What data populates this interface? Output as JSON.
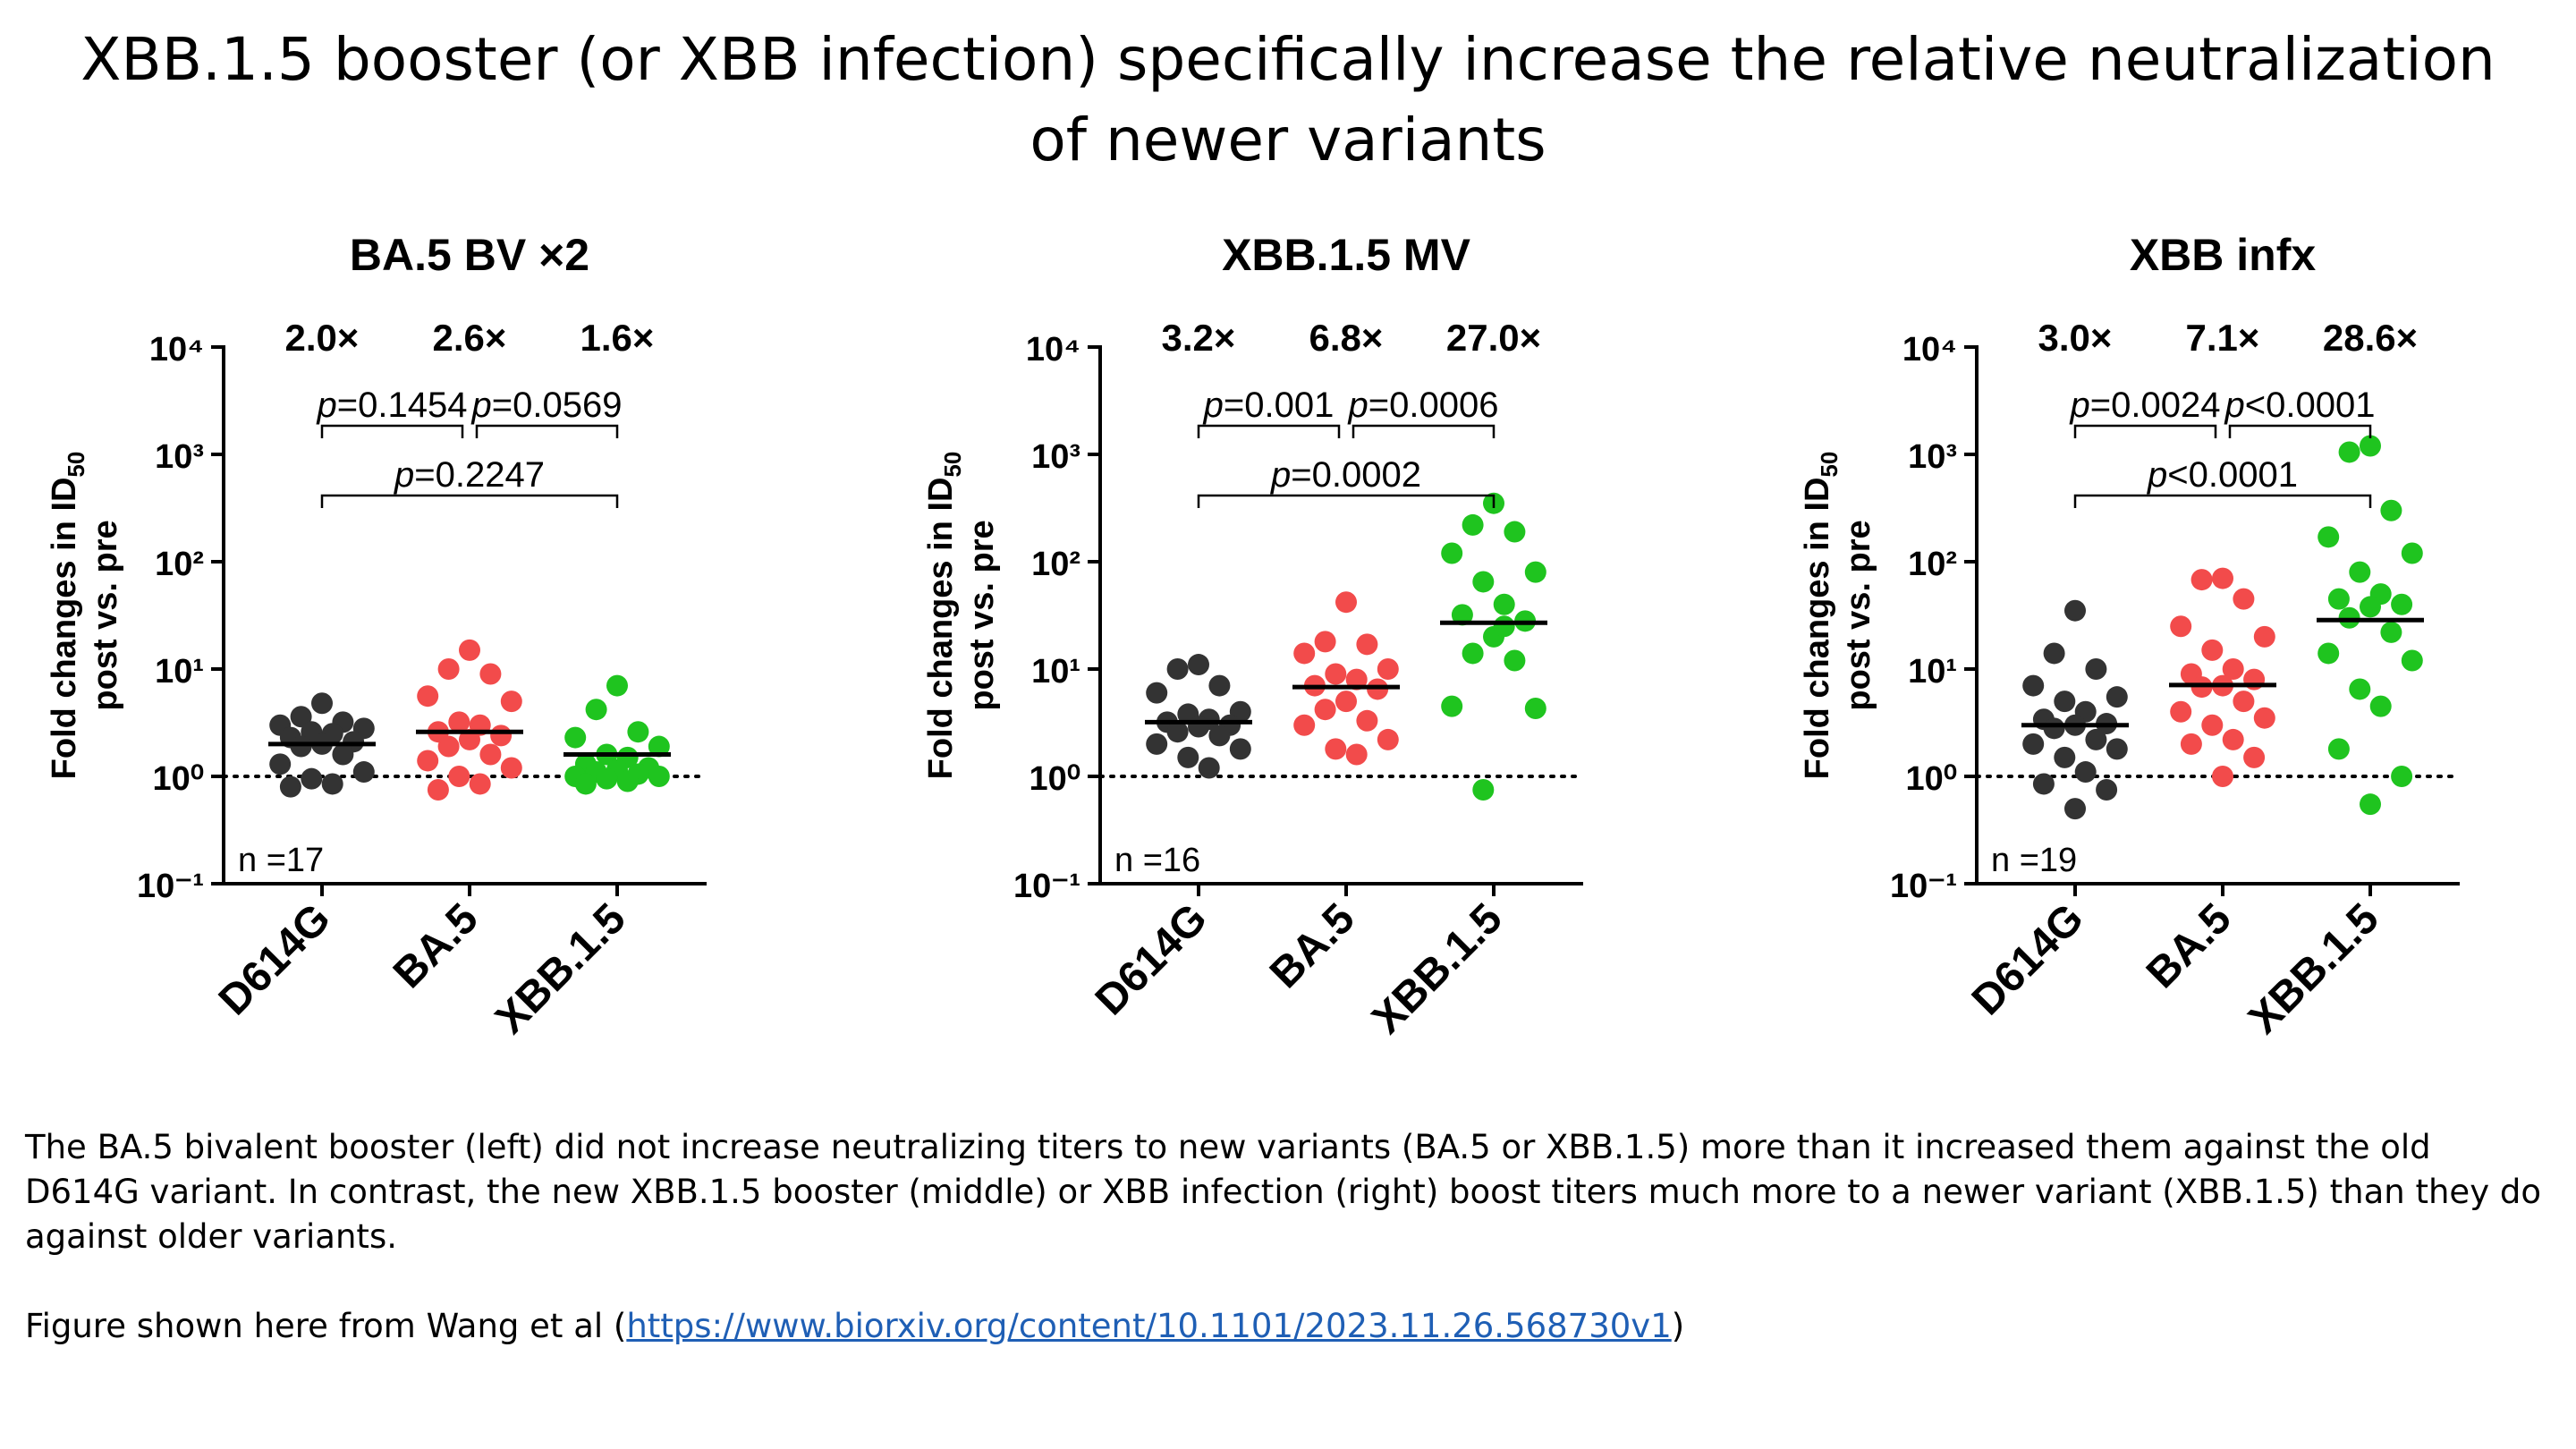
{
  "slide": {
    "title_line1": "XBB.1.5 booster (or XBB infection) specifically increase the relative neutralization",
    "title_line2": "of newer variants",
    "caption": "The BA.5 bivalent booster (left) did not increase neutralizing titers to new variants (BA.5 or XBB.1.5) more than it increased them against the old D614G variant. In contrast, the new XBB.1.5 booster (middle) or XBB infection (right) boost titers much more to a newer variant (XBB.1.5) than they do against older variants.",
    "source_prefix": "Figure shown here from Wang et al (",
    "source_link": "https://www.biorxiv.org/content/10.1101/2023.11.26.568730v1",
    "source_suffix": ")"
  },
  "colors": {
    "D614G": "#333333",
    "BA.5": "#f24b4b",
    "XBB.1.5": "#1fc41f"
  },
  "chart_data": [
    {
      "type": "scatter",
      "title": "BA.5 BV ×2",
      "ylabel": "Fold changes in ID50 post vs. pre",
      "yscale": "log",
      "ylim": [
        0.1,
        10000
      ],
      "yticks": [
        "10⁻¹",
        "10⁰",
        "10¹",
        "10²",
        "10³",
        "10⁴"
      ],
      "reference_line": 1,
      "categories": [
        "D614G",
        "BA.5",
        "XBB.1.5"
      ],
      "fold_labels": [
        "2.0×",
        "2.6×",
        "1.6×"
      ],
      "medians": [
        2.0,
        2.6,
        1.6
      ],
      "comparisons": [
        {
          "from": 0,
          "to": 1,
          "label": "p=0.1454"
        },
        {
          "from": 1,
          "to": 2,
          "label": "p=0.0569"
        },
        {
          "from": 0,
          "to": 2,
          "label": "p=0.2247"
        }
      ],
      "n_label": "n =17",
      "series": [
        {
          "category": "D614G",
          "values": [
            4.8,
            3.6,
            3.2,
            3.0,
            2.8,
            2.6,
            2.5,
            2.3,
            2.1,
            2.0,
            1.9,
            1.6,
            1.3,
            1.1,
            0.95,
            0.85,
            0.8
          ]
        },
        {
          "category": "BA.5",
          "values": [
            15,
            10,
            9,
            5.6,
            5,
            3.2,
            3,
            2.6,
            2.4,
            2.2,
            1.9,
            1.6,
            1.4,
            1.2,
            1.0,
            0.85,
            0.75
          ]
        },
        {
          "category": "XBB.1.5",
          "values": [
            7,
            4.2,
            2.6,
            2.3,
            1.9,
            1.6,
            1.5,
            1.3,
            1.2,
            1.15,
            1.1,
            1.05,
            1.0,
            1.0,
            0.95,
            0.9,
            0.85
          ]
        }
      ]
    },
    {
      "type": "scatter",
      "title": "XBB.1.5 MV",
      "ylabel": "Fold changes in ID50 post vs. pre",
      "yscale": "log",
      "ylim": [
        0.1,
        10000
      ],
      "yticks": [
        "10⁻¹",
        "10⁰",
        "10¹",
        "10²",
        "10³",
        "10⁴"
      ],
      "reference_line": 1,
      "categories": [
        "D614G",
        "BA.5",
        "XBB.1.5"
      ],
      "fold_labels": [
        "3.2×",
        "6.8×",
        "27.0×"
      ],
      "medians": [
        3.2,
        6.8,
        27
      ],
      "comparisons": [
        {
          "from": 0,
          "to": 1,
          "label": "p=0.001"
        },
        {
          "from": 1,
          "to": 2,
          "label": "p=0.0006"
        },
        {
          "from": 0,
          "to": 2,
          "label": "p=0.0002"
        }
      ],
      "n_label": "n =16",
      "series": [
        {
          "category": "D614G",
          "values": [
            11,
            10,
            7,
            6,
            4,
            3.8,
            3.4,
            3.2,
            3.0,
            2.9,
            2.6,
            2.4,
            2.0,
            1.8,
            1.5,
            1.2
          ]
        },
        {
          "category": "BA.5",
          "values": [
            42,
            18,
            17,
            14,
            10,
            9,
            8,
            7,
            6.5,
            5,
            4.2,
            3.3,
            3,
            2.2,
            1.8,
            1.6
          ]
        },
        {
          "category": "XBB.1.5",
          "values": [
            350,
            220,
            190,
            120,
            80,
            65,
            40,
            32,
            28,
            20,
            14,
            12,
            4.5,
            4.3,
            0.75,
            25
          ]
        }
      ]
    },
    {
      "type": "scatter",
      "title": "XBB infx",
      "ylabel": "Fold changes in ID50 post vs. pre",
      "yscale": "log",
      "ylim": [
        0.1,
        10000
      ],
      "yticks": [
        "10⁻¹",
        "10⁰",
        "10¹",
        "10²",
        "10³",
        "10⁴"
      ],
      "reference_line": 1,
      "categories": [
        "D614G",
        "BA.5",
        "XBB.1.5"
      ],
      "fold_labels": [
        "3.0×",
        "7.1×",
        "28.6×"
      ],
      "medians": [
        3.0,
        7.1,
        28.6
      ],
      "comparisons": [
        {
          "from": 0,
          "to": 1,
          "label": "p=0.0024"
        },
        {
          "from": 1,
          "to": 2,
          "label": "p<0.0001"
        },
        {
          "from": 0,
          "to": 2,
          "label": "p<0.0001"
        }
      ],
      "n_label": "n =19",
      "series": [
        {
          "category": "D614G",
          "values": [
            35,
            14,
            10,
            7,
            5.5,
            5,
            4,
            3.4,
            3.1,
            3.0,
            2.8,
            2.2,
            2.0,
            1.8,
            1.5,
            1.1,
            0.85,
            0.75,
            0.5
          ]
        },
        {
          "category": "BA.5",
          "values": [
            70,
            68,
            45,
            25,
            20,
            15,
            10,
            9,
            8,
            7,
            6.8,
            5,
            4,
            3.5,
            3,
            2.2,
            2,
            1.5,
            1.0
          ]
        },
        {
          "category": "XBB.1.5",
          "values": [
            1200,
            1050,
            300,
            170,
            120,
            80,
            50,
            45,
            40,
            38,
            30,
            22,
            14,
            12,
            6.5,
            4.5,
            1.8,
            1.0,
            0.55
          ]
        }
      ]
    }
  ]
}
